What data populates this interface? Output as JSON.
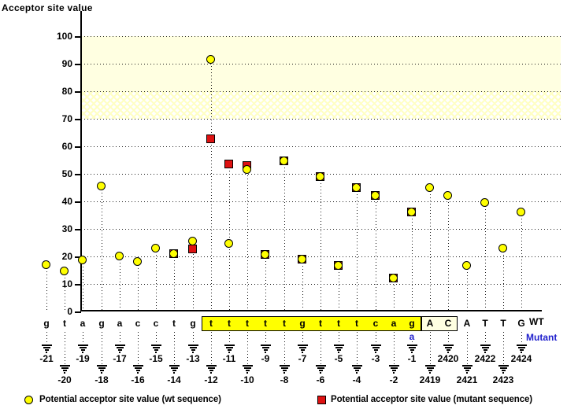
{
  "title": "Acceptor site value",
  "wt_row_label": "WT",
  "mutant_row_label": "Mutant",
  "legend": {
    "wt": "Potential acceptor site value (wt sequence)",
    "mutant": "Potential acceptor site value (mutant sequence)"
  },
  "colors": {
    "wt_marker": "#ffff00",
    "mutant_marker": "#de1212",
    "band_solid": "#ffffe1",
    "band_hatch": "#ffffc4",
    "acceptor_box": "#ffff00",
    "exon_box": "#ffffe1",
    "mutant_text": "#2121cd",
    "axis": "#000000"
  },
  "chart_data": {
    "type": "scatter",
    "title": "Acceptor site value",
    "ylabel": "Acceptor site value",
    "xlabel": "",
    "ylim": [
      0,
      100
    ],
    "yticks": [
      0,
      10,
      20,
      30,
      40,
      50,
      60,
      70,
      80,
      90,
      100
    ],
    "grid": "horizontal-dotted",
    "legend_position": "bottom",
    "threshold_bands": [
      {
        "range": [
          80,
          100
        ],
        "style": "solid"
      },
      {
        "range": [
          70,
          80
        ],
        "style": "hatched"
      }
    ],
    "series_meta": [
      {
        "name": "Potential acceptor site value (wt sequence)",
        "marker": "circle",
        "color": "#ffff00"
      },
      {
        "name": "Potential acceptor site value (mutant sequence)",
        "marker": "square",
        "color": "#de1212"
      }
    ],
    "points": [
      {
        "label": "-21",
        "base": "g",
        "wt": 17,
        "mut": null,
        "region": "intron",
        "row": "upper"
      },
      {
        "label": "-20",
        "base": "t",
        "wt": 14.5,
        "mut": null,
        "region": "intron",
        "row": "lower"
      },
      {
        "label": "-19",
        "base": "a",
        "wt": 18.5,
        "mut": null,
        "region": "intron",
        "row": "upper"
      },
      {
        "label": "-18",
        "base": "g",
        "wt": 45.5,
        "mut": null,
        "region": "intron",
        "row": "lower"
      },
      {
        "label": "-17",
        "base": "a",
        "wt": 20,
        "mut": null,
        "region": "intron",
        "row": "upper"
      },
      {
        "label": "-16",
        "base": "c",
        "wt": 18,
        "mut": null,
        "region": "intron",
        "row": "lower"
      },
      {
        "label": "-15",
        "base": "c",
        "wt": 23,
        "mut": null,
        "region": "intron",
        "row": "upper"
      },
      {
        "label": "-14",
        "base": "t",
        "wt": 21,
        "mut": 21,
        "region": "intron",
        "row": "lower"
      },
      {
        "label": "-13",
        "base": "g",
        "wt": 25.5,
        "mut": 22.5,
        "region": "intron",
        "row": "upper"
      },
      {
        "label": "-12",
        "base": "t",
        "wt": 91.5,
        "mut": 62.5,
        "region": "acceptor",
        "row": "lower"
      },
      {
        "label": "-11",
        "base": "t",
        "wt": 24.5,
        "mut": 53.5,
        "region": "acceptor",
        "row": "upper"
      },
      {
        "label": "-10",
        "base": "t",
        "wt": 51.5,
        "mut": 53,
        "region": "acceptor",
        "row": "lower"
      },
      {
        "label": "-9",
        "base": "t",
        "wt": 20.5,
        "mut": 20.5,
        "region": "acceptor",
        "row": "upper"
      },
      {
        "label": "-8",
        "base": "t",
        "wt": 54.5,
        "mut": 54.5,
        "region": "acceptor",
        "row": "lower"
      },
      {
        "label": "-7",
        "base": "g",
        "wt": 19,
        "mut": 19,
        "region": "acceptor",
        "row": "upper"
      },
      {
        "label": "-6",
        "base": "t",
        "wt": 49,
        "mut": 49,
        "region": "acceptor",
        "row": "lower"
      },
      {
        "label": "-5",
        "base": "t",
        "wt": 16.5,
        "mut": 16.5,
        "region": "acceptor",
        "row": "upper"
      },
      {
        "label": "-4",
        "base": "t",
        "wt": 45,
        "mut": 45,
        "region": "acceptor",
        "row": "lower"
      },
      {
        "label": "-3",
        "base": "c",
        "wt": 42,
        "mut": 42,
        "region": "acceptor",
        "row": "upper"
      },
      {
        "label": "-2",
        "base": "a",
        "wt": 12,
        "mut": 12,
        "region": "acceptor",
        "row": "lower"
      },
      {
        "label": "-1",
        "base": "g",
        "wt": 36,
        "mut": 36,
        "region": "acceptor",
        "row": "upper",
        "mutant_base": "a"
      },
      {
        "label": "2419",
        "base": "A",
        "wt": 45,
        "mut": null,
        "region": "exon_boxed",
        "row": "lower"
      },
      {
        "label": "2420",
        "base": "C",
        "wt": 42,
        "mut": null,
        "region": "exon_boxed",
        "row": "upper"
      },
      {
        "label": "2421",
        "base": "A",
        "wt": 16.5,
        "mut": null,
        "region": "exon",
        "row": "lower"
      },
      {
        "label": "2422",
        "base": "T",
        "wt": 39.5,
        "mut": null,
        "region": "exon",
        "row": "upper"
      },
      {
        "label": "2423",
        "base": "T",
        "wt": 23,
        "mut": null,
        "region": "exon",
        "row": "lower"
      },
      {
        "label": "2424",
        "base": "G",
        "wt": 36,
        "mut": null,
        "region": "exon",
        "row": "upper"
      }
    ]
  }
}
